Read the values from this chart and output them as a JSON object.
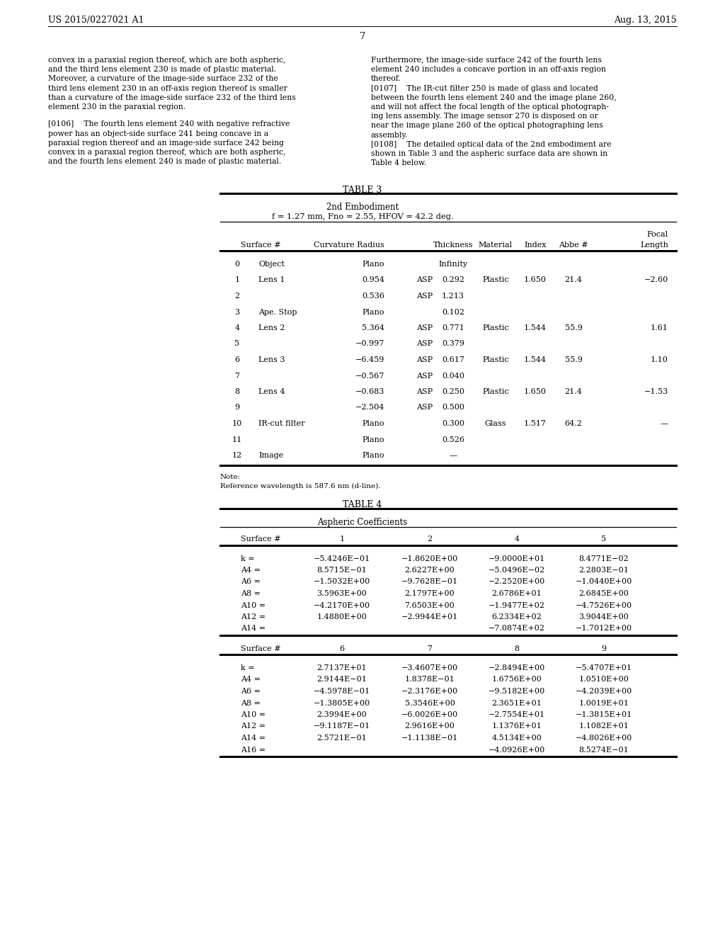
{
  "page_number": "7",
  "patent_number": "US 2015/0227021 A1",
  "patent_date": "Aug. 13, 2015",
  "bg_color": "#ffffff",
  "left_col_text": [
    "convex in a paraxial region thereof, which are both aspheric,",
    "and the third lens element 230 is made of plastic material.",
    "Moreover, a curvature of the image-side surface 232 of the",
    "third lens element 230 in an off-axis region thereof is smaller",
    "than a curvature of the image-side surface 232 of the third lens",
    "element 230 in the paraxial region.",
    "",
    "[0106]    The fourth lens element 240 with negative refractive",
    "power has an object-side surface 241 being concave in a",
    "paraxial region thereof and an image-side surface 242 being",
    "convex in a paraxial region thereof, which are both aspheric,",
    "and the fourth lens element 240 is made of plastic material."
  ],
  "right_col_text": [
    "Furthermore, the image-side surface 242 of the fourth lens",
    "element 240 includes a concave portion in an off-axis region",
    "thereof.",
    "[0107]    The IR-cut filter 250 is made of glass and located",
    "between the fourth lens element 240 and the image plane 260,",
    "and will not affect the focal length of the optical photograph-",
    "ing lens assembly. The image sensor 270 is disposed on or",
    "near the image plane 260 of the optical photographing lens",
    "assembly.",
    "[0108]    The detailed optical data of the 2nd embodiment are",
    "shown in Table 3 and the aspheric surface data are shown in",
    "Table 4 below."
  ],
  "table3_title": "TABLE 3",
  "table3_subtitle1": "2nd Embodiment",
  "table3_subtitle2": "f = 1.27 mm, Fno = 2.55, HFOV = 42.2 deg.",
  "table3_rows": [
    [
      "0",
      "Object",
      "Plano",
      "",
      "Infinity",
      "",
      "",
      "",
      ""
    ],
    [
      "1",
      "Lens 1",
      "0.954",
      "ASP",
      "0.292",
      "Plastic",
      "1.650",
      "21.4",
      "−2.60"
    ],
    [
      "2",
      "",
      "0.536",
      "ASP",
      "1.213",
      "",
      "",
      "",
      ""
    ],
    [
      "3",
      "Ape. Stop",
      "Plano",
      "",
      "0.102",
      "",
      "",
      "",
      ""
    ],
    [
      "4",
      "Lens 2",
      "5.364",
      "ASP",
      "0.771",
      "Plastic",
      "1.544",
      "55.9",
      "1.61"
    ],
    [
      "5",
      "",
      "−0.997",
      "ASP",
      "0.379",
      "",
      "",
      "",
      ""
    ],
    [
      "6",
      "Lens 3",
      "−6.459",
      "ASP",
      "0.617",
      "Plastic",
      "1.544",
      "55.9",
      "1.10"
    ],
    [
      "7",
      "",
      "−0.567",
      "ASP",
      "0.040",
      "",
      "",
      "",
      ""
    ],
    [
      "8",
      "Lens 4",
      "−0.683",
      "ASP",
      "0.250",
      "Plastic",
      "1.650",
      "21.4",
      "−1.53"
    ],
    [
      "9",
      "",
      "−2.504",
      "ASP",
      "0.500",
      "",
      "",
      "",
      ""
    ],
    [
      "10",
      "IR-cut filter",
      "Plano",
      "",
      "0.300",
      "Glass",
      "1.517",
      "64.2",
      "—"
    ],
    [
      "11",
      "",
      "Plano",
      "",
      "0.526",
      "",
      "",
      "",
      ""
    ],
    [
      "12",
      "Image",
      "Plano",
      "",
      "—",
      "",
      "",
      "",
      ""
    ]
  ],
  "note_text": "Note:",
  "note_ref": "Reference wavelength is 587.6 nm (d-line).",
  "table4_title": "TABLE 4",
  "table4_subtitle": "Aspheric Coefficients",
  "table4_upper_headers": [
    "Surface #",
    "1",
    "2",
    "4",
    "5"
  ],
  "table4_upper_rows": [
    [
      "k =",
      "−5.4246E−01",
      "−1.8620E+00",
      "−9.0000E+01",
      "8.4771E−02"
    ],
    [
      "A4 =",
      "8.5715E−01",
      "2.6227E+00",
      "−5.0496E−02",
      "2.2803E−01"
    ],
    [
      "A6 =",
      "−1.5032E+00",
      "−9.7628E−01",
      "−2.2520E+00",
      "−1.0440E+00"
    ],
    [
      "A8 =",
      "3.5963E+00",
      "2.1797E+00",
      "2.6786E+01",
      "2.6845E+00"
    ],
    [
      "A10 =",
      "−4.2170E+00",
      "7.6503E+00",
      "−1.9477E+02",
      "−4.7526E+00"
    ],
    [
      "A12 =",
      "1.4880E+00",
      "−2.9944E+01",
      "6.2334E+02",
      "3.9044E+00"
    ],
    [
      "A14 =",
      "",
      "",
      "−7.0874E+02",
      "−1.7012E+00"
    ]
  ],
  "table4_lower_headers": [
    "Surface #",
    "6",
    "7",
    "8",
    "9"
  ],
  "table4_lower_rows": [
    [
      "k =",
      "2.7137E+01",
      "−3.4607E+00",
      "−2.8494E+00",
      "−5.4707E+01"
    ],
    [
      "A4 =",
      "2.9144E−01",
      "1.8378E−01",
      "1.6756E+00",
      "1.0510E+00"
    ],
    [
      "A6 =",
      "−4.5978E−01",
      "−2.3176E+00",
      "−9.5182E+00",
      "−4.2039E+00"
    ],
    [
      "A8 =",
      "−1.3805E+00",
      "5.3546E+00",
      "2.3651E+01",
      "1.0019E+01"
    ],
    [
      "A10 =",
      "2.3994E+00",
      "−6.0026E+00",
      "−2.7554E+01",
      "−1.3815E+01"
    ],
    [
      "A12 =",
      "−9.1187E−01",
      "2.9616E+00",
      "1.1376E+01",
      "1.1082E+01"
    ],
    [
      "A14 =",
      "2.5721E−01",
      "−1.1138E−01",
      "4.5134E+00",
      "−4.8026E+00"
    ],
    [
      "A16 =",
      "",
      "",
      "−4.0926E+00",
      "8.5274E−01"
    ]
  ]
}
